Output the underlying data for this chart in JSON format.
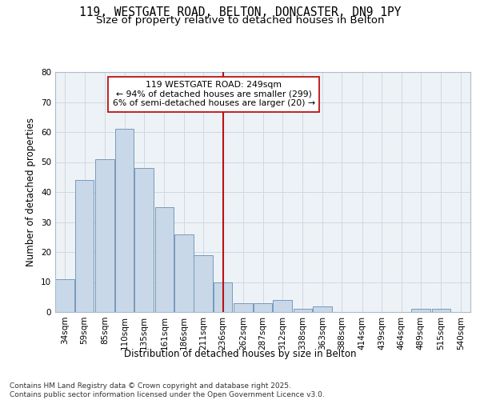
{
  "title_line1": "119, WESTGATE ROAD, BELTON, DONCASTER, DN9 1PY",
  "title_line2": "Size of property relative to detached houses in Belton",
  "xlabel": "Distribution of detached houses by size in Belton",
  "ylabel": "Number of detached properties",
  "footer": "Contains HM Land Registry data © Crown copyright and database right 2025.\nContains public sector information licensed under the Open Government Licence v3.0.",
  "bin_labels": [
    "34sqm",
    "59sqm",
    "85sqm",
    "110sqm",
    "135sqm",
    "161sqm",
    "186sqm",
    "211sqm",
    "236sqm",
    "262sqm",
    "287sqm",
    "312sqm",
    "338sqm",
    "363sqm",
    "388sqm",
    "414sqm",
    "439sqm",
    "464sqm",
    "489sqm",
    "515sqm",
    "540sqm"
  ],
  "bin_edges": [
    34,
    59,
    85,
    110,
    135,
    161,
    186,
    211,
    236,
    262,
    287,
    312,
    338,
    363,
    388,
    414,
    439,
    464,
    489,
    515,
    540
  ],
  "bar_heights": [
    11,
    44,
    51,
    61,
    48,
    35,
    26,
    19,
    10,
    3,
    3,
    4,
    1,
    2,
    0,
    0,
    0,
    0,
    1,
    1,
    0
  ],
  "bar_color": "#c8d8e8",
  "bar_edgecolor": "#7799bb",
  "property_line_x": 249,
  "property_line_color": "#bb1111",
  "annotation_text": "119 WESTGATE ROAD: 249sqm\n← 94% of detached houses are smaller (299)\n6% of semi-detached houses are larger (20) →",
  "annotation_box_color": "#ffffff",
  "annotation_border_color": "#bb1111",
  "ylim": [
    0,
    80
  ],
  "yticks": [
    0,
    10,
    20,
    30,
    40,
    50,
    60,
    70,
    80
  ],
  "grid_color": "#d0d8e0",
  "background_color": "#edf2f7",
  "title_fontsize": 10.5,
  "subtitle_fontsize": 9.5,
  "axis_label_fontsize": 8.5,
  "tick_fontsize": 7.5,
  "annotation_fontsize": 7.8,
  "footer_fontsize": 6.5
}
